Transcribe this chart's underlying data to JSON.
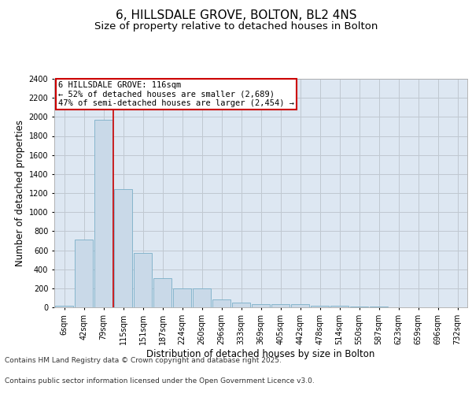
{
  "title": "6, HILLSDALE GROVE, BOLTON, BL2 4NS",
  "subtitle": "Size of property relative to detached houses in Bolton",
  "xlabel": "Distribution of detached houses by size in Bolton",
  "ylabel": "Number of detached properties",
  "categories": [
    "6sqm",
    "42sqm",
    "79sqm",
    "115sqm",
    "151sqm",
    "187sqm",
    "224sqm",
    "260sqm",
    "296sqm",
    "333sqm",
    "369sqm",
    "405sqm",
    "442sqm",
    "478sqm",
    "514sqm",
    "550sqm",
    "587sqm",
    "623sqm",
    "659sqm",
    "696sqm",
    "732sqm"
  ],
  "values": [
    15,
    710,
    1970,
    1240,
    575,
    305,
    200,
    200,
    80,
    48,
    35,
    35,
    35,
    20,
    20,
    5,
    5,
    0,
    0,
    0,
    0
  ],
  "bar_color": "#c9d9e8",
  "bar_edge_color": "#7aafc8",
  "grid_color": "#c0c8d0",
  "background_color": "#dde7f2",
  "annotation_box_text": "6 HILLSDALE GROVE: 116sqm\n← 52% of detached houses are smaller (2,689)\n47% of semi-detached houses are larger (2,454) →",
  "annotation_box_color": "#cc0000",
  "vline_color": "#cc0000",
  "ylim": [
    0,
    2400
  ],
  "yticks": [
    0,
    200,
    400,
    600,
    800,
    1000,
    1200,
    1400,
    1600,
    1800,
    2000,
    2200,
    2400
  ],
  "footer_line1": "Contains HM Land Registry data © Crown copyright and database right 2025.",
  "footer_line2": "Contains public sector information licensed under the Open Government Licence v3.0.",
  "title_fontsize": 11,
  "subtitle_fontsize": 9.5,
  "axis_label_fontsize": 8.5,
  "tick_fontsize": 7,
  "footer_fontsize": 6.5,
  "ann_fontsize": 7.5
}
